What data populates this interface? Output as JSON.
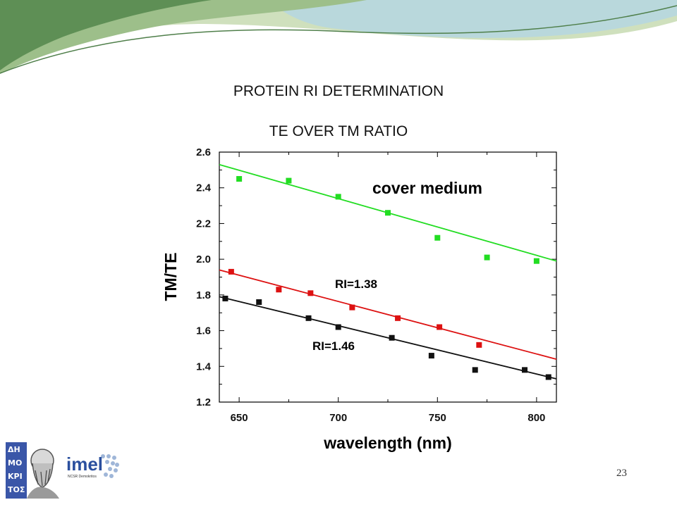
{
  "slide": {
    "title_line1": "PROTEIN RI DETERMINATION",
    "title_line2": "TE OVER TM RATIO",
    "page_number": "23",
    "banner_colors": [
      "#5e8f55",
      "#9dbf8a",
      "#cfe0bd",
      "#b9d8dc"
    ]
  },
  "logos": {
    "demokritos_text": "ΔΗΜΟΚΡΙΤΟΣ",
    "imel_text": "imel",
    "imel_subtext": "NCSR Demokritos"
  },
  "chart_data": {
    "type": "scatter",
    "title": "",
    "xlabel": "wavelength (nm)",
    "ylabel": "TM/TE",
    "xlim": [
      640,
      810
    ],
    "ylim": [
      1.2,
      2.6
    ],
    "xticks": [
      650,
      700,
      750,
      800
    ],
    "yticks": [
      1.2,
      1.4,
      1.6,
      1.8,
      2.0,
      2.2,
      2.4,
      2.6
    ],
    "xtick_labels": [
      "650",
      "700",
      "750",
      "800"
    ],
    "ytick_labels": [
      "1.2",
      "1.4",
      "1.6",
      "1.8",
      "2.0",
      "2.2",
      "2.4",
      "2.6"
    ],
    "grid": false,
    "legend": "none",
    "annotations": {
      "cover": "cover medium",
      "ri138": "RI=1.38",
      "ri146": "RI=1.46"
    },
    "series": [
      {
        "color": "#22dd22",
        "x": [
          650,
          675,
          700,
          725,
          750,
          775,
          800
        ],
        "y": [
          2.45,
          2.44,
          2.35,
          2.26,
          2.12,
          2.01,
          1.99
        ],
        "fit": {
          "x": [
            640,
            810
          ],
          "y": [
            2.53,
            1.99
          ]
        }
      },
      {
        "color": "#dd1111",
        "x": [
          646,
          670,
          686,
          707,
          730,
          751,
          771
        ],
        "y": [
          1.93,
          1.83,
          1.81,
          1.73,
          1.67,
          1.62,
          1.52
        ],
        "fit": {
          "x": [
            640,
            810
          ],
          "y": [
            1.94,
            1.44
          ]
        }
      },
      {
        "color": "#111111",
        "x": [
          643,
          660,
          685,
          700,
          727,
          747,
          769,
          794,
          806
        ],
        "y": [
          1.78,
          1.76,
          1.67,
          1.62,
          1.56,
          1.46,
          1.38,
          1.38,
          1.34
        ],
        "fit": {
          "x": [
            640,
            810
          ],
          "y": [
            1.79,
            1.33
          ]
        }
      }
    ]
  }
}
